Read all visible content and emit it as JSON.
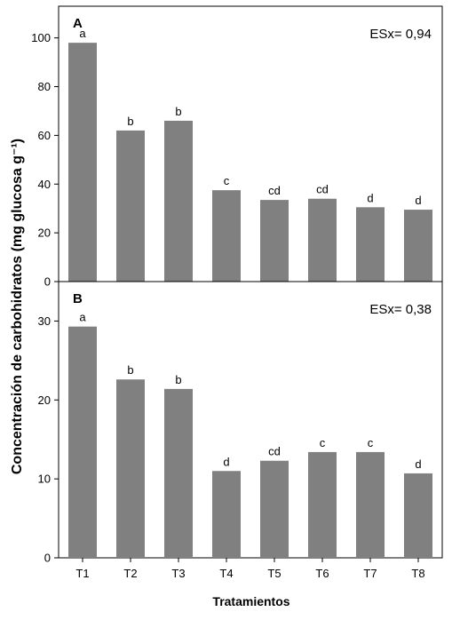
{
  "ylabel": "Concentración de carbohidratos (mg glucosa g⁻¹)",
  "xlabel": "Tratamientos",
  "categories": [
    "T1",
    "T2",
    "T3",
    "T4",
    "T5",
    "T6",
    "T7",
    "T8"
  ],
  "bar_color": "#808080",
  "chart_data": [
    {
      "type": "bar",
      "panel_label": "A",
      "annotation": "ESx= 0,94",
      "categories": [
        "T1",
        "T2",
        "T3",
        "T4",
        "T5",
        "T6",
        "T7",
        "T8"
      ],
      "values": [
        98,
        62,
        66,
        37.5,
        33.5,
        34,
        30.5,
        29.5
      ],
      "letters": [
        "a",
        "b",
        "b",
        "c",
        "cd",
        "cd",
        "d",
        "d"
      ],
      "yticks": [
        0,
        20,
        40,
        60,
        80,
        100
      ],
      "ylim": [
        0,
        113
      ],
      "grid": false
    },
    {
      "type": "bar",
      "panel_label": "B",
      "annotation": "ESx= 0,38",
      "categories": [
        "T1",
        "T2",
        "T3",
        "T4",
        "T5",
        "T6",
        "T7",
        "T8"
      ],
      "values": [
        29.3,
        22.6,
        21.4,
        11,
        12.3,
        13.4,
        13.4,
        10.7
      ],
      "letters": [
        "a",
        "b",
        "b",
        "d",
        "cd",
        "c",
        "c",
        "d"
      ],
      "yticks": [
        0,
        10,
        20,
        30
      ],
      "ylim": [
        0,
        35
      ],
      "grid": false
    }
  ]
}
